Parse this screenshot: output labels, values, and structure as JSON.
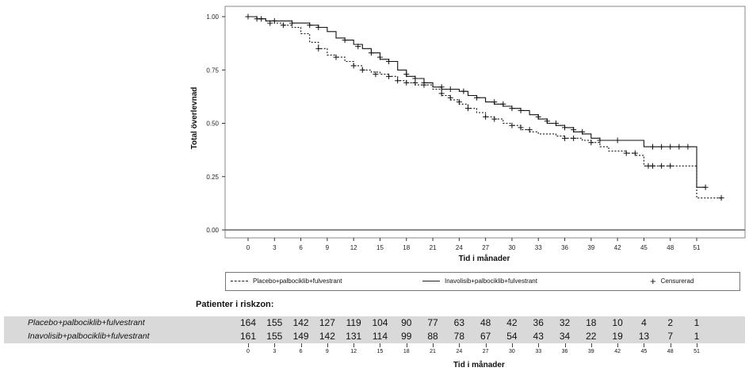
{
  "chart_data": {
    "type": "line",
    "ylabel": "Total överlevnad",
    "xlabel": "Tid i månader",
    "xlim": [
      0,
      54
    ],
    "ylim": [
      0,
      1.0
    ],
    "x_ticks": [
      0,
      3,
      6,
      9,
      12,
      15,
      18,
      21,
      24,
      27,
      30,
      33,
      36,
      39,
      42,
      45,
      48,
      51
    ],
    "y_ticks": [
      "0.00",
      "0.25",
      "0.50",
      "0.75",
      "1.00"
    ],
    "grid": false,
    "legend_position": "bottom",
    "series": [
      {
        "name": "Placebo+palbociklib+fulvestrant",
        "style": "dashed",
        "points": [
          [
            0,
            1.0
          ],
          [
            1,
            0.99
          ],
          [
            2,
            0.98
          ],
          [
            3,
            0.97
          ],
          [
            4,
            0.96
          ],
          [
            5,
            0.95
          ],
          [
            6,
            0.92
          ],
          [
            7,
            0.88
          ],
          [
            8,
            0.85
          ],
          [
            9,
            0.82
          ],
          [
            10,
            0.81
          ],
          [
            11,
            0.79
          ],
          [
            12,
            0.77
          ],
          [
            13,
            0.75
          ],
          [
            14,
            0.74
          ],
          [
            15,
            0.73
          ],
          [
            16,
            0.72
          ],
          [
            17,
            0.7
          ],
          [
            18,
            0.69
          ],
          [
            19,
            0.68
          ],
          [
            20,
            0.68
          ],
          [
            21,
            0.66
          ],
          [
            22,
            0.63
          ],
          [
            23,
            0.61
          ],
          [
            24,
            0.59
          ],
          [
            25,
            0.57
          ],
          [
            26,
            0.55
          ],
          [
            27,
            0.53
          ],
          [
            28,
            0.52
          ],
          [
            29,
            0.5
          ],
          [
            30,
            0.49
          ],
          [
            31,
            0.47
          ],
          [
            32,
            0.46
          ],
          [
            33,
            0.45
          ],
          [
            34,
            0.45
          ],
          [
            35,
            0.44
          ],
          [
            36,
            0.43
          ],
          [
            37,
            0.43
          ],
          [
            38,
            0.42
          ],
          [
            39,
            0.41
          ],
          [
            40,
            0.39
          ],
          [
            41,
            0.37
          ],
          [
            42,
            0.37
          ],
          [
            43,
            0.36
          ],
          [
            44,
            0.35
          ],
          [
            45,
            0.3
          ],
          [
            46,
            0.3
          ],
          [
            47,
            0.3
          ],
          [
            48,
            0.3
          ],
          [
            49,
            0.3
          ],
          [
            50,
            0.3
          ],
          [
            51,
            0.15
          ],
          [
            52,
            0.15
          ],
          [
            53,
            0.15
          ],
          [
            54,
            0.15
          ]
        ],
        "censored": [
          [
            1,
            0.99
          ],
          [
            2.5,
            0.97
          ],
          [
            4,
            0.96
          ],
          [
            8,
            0.85
          ],
          [
            10,
            0.81
          ],
          [
            12,
            0.77
          ],
          [
            13,
            0.75
          ],
          [
            14.5,
            0.73
          ],
          [
            16,
            0.72
          ],
          [
            17,
            0.7
          ],
          [
            18,
            0.69
          ],
          [
            19,
            0.69
          ],
          [
            20,
            0.68
          ],
          [
            22,
            0.64
          ],
          [
            23,
            0.62
          ],
          [
            24,
            0.6
          ],
          [
            25,
            0.57
          ],
          [
            27,
            0.53
          ],
          [
            28,
            0.52
          ],
          [
            30,
            0.49
          ],
          [
            31,
            0.48
          ],
          [
            32,
            0.47
          ],
          [
            36,
            0.43
          ],
          [
            37,
            0.43
          ],
          [
            39,
            0.41
          ],
          [
            43,
            0.36
          ],
          [
            44,
            0.36
          ],
          [
            45.5,
            0.3
          ],
          [
            46,
            0.3
          ],
          [
            47,
            0.3
          ],
          [
            48,
            0.3
          ],
          [
            53.8,
            0.15
          ]
        ]
      },
      {
        "name": "Inavolisib+palbociklib+fulvestrant",
        "style": "solid",
        "points": [
          [
            0,
            1.0
          ],
          [
            1,
            0.99
          ],
          [
            2,
            0.98
          ],
          [
            3,
            0.98
          ],
          [
            4,
            0.98
          ],
          [
            5,
            0.97
          ],
          [
            6,
            0.97
          ],
          [
            7,
            0.96
          ],
          [
            8,
            0.95
          ],
          [
            9,
            0.93
          ],
          [
            10,
            0.9
          ],
          [
            11,
            0.89
          ],
          [
            12,
            0.87
          ],
          [
            13,
            0.85
          ],
          [
            14,
            0.83
          ],
          [
            15,
            0.8
          ],
          [
            16,
            0.79
          ],
          [
            17,
            0.75
          ],
          [
            18,
            0.72
          ],
          [
            19,
            0.71
          ],
          [
            20,
            0.69
          ],
          [
            21,
            0.67
          ],
          [
            22,
            0.66
          ],
          [
            23,
            0.66
          ],
          [
            24,
            0.65
          ],
          [
            25,
            0.63
          ],
          [
            26,
            0.62
          ],
          [
            27,
            0.6
          ],
          [
            28,
            0.59
          ],
          [
            29,
            0.58
          ],
          [
            30,
            0.57
          ],
          [
            31,
            0.56
          ],
          [
            32,
            0.54
          ],
          [
            33,
            0.52
          ],
          [
            34,
            0.5
          ],
          [
            35,
            0.49
          ],
          [
            36,
            0.48
          ],
          [
            37,
            0.46
          ],
          [
            38,
            0.45
          ],
          [
            39,
            0.43
          ],
          [
            40,
            0.42
          ],
          [
            41,
            0.42
          ],
          [
            42,
            0.42
          ],
          [
            43,
            0.42
          ],
          [
            44,
            0.42
          ],
          [
            45,
            0.39
          ],
          [
            46,
            0.39
          ],
          [
            47,
            0.39
          ],
          [
            48,
            0.39
          ],
          [
            49,
            0.39
          ],
          [
            50,
            0.39
          ],
          [
            51,
            0.2
          ],
          [
            52,
            0.2
          ]
        ],
        "censored": [
          [
            0,
            1.0
          ],
          [
            1.5,
            0.99
          ],
          [
            3,
            0.98
          ],
          [
            5,
            0.97
          ],
          [
            7,
            0.96
          ],
          [
            8,
            0.95
          ],
          [
            11,
            0.89
          ],
          [
            12.5,
            0.86
          ],
          [
            14,
            0.83
          ],
          [
            15,
            0.81
          ],
          [
            16,
            0.79
          ],
          [
            18,
            0.73
          ],
          [
            19,
            0.71
          ],
          [
            20,
            0.69
          ],
          [
            22,
            0.67
          ],
          [
            23,
            0.66
          ],
          [
            24.5,
            0.65
          ],
          [
            26,
            0.62
          ],
          [
            28,
            0.6
          ],
          [
            29,
            0.59
          ],
          [
            30,
            0.57
          ],
          [
            31,
            0.56
          ],
          [
            33,
            0.53
          ],
          [
            34,
            0.51
          ],
          [
            35,
            0.5
          ],
          [
            36,
            0.48
          ],
          [
            37,
            0.47
          ],
          [
            38,
            0.46
          ],
          [
            40,
            0.42
          ],
          [
            42,
            0.42
          ],
          [
            46,
            0.39
          ],
          [
            47,
            0.39
          ],
          [
            48,
            0.39
          ],
          [
            49,
            0.39
          ],
          [
            50,
            0.39
          ],
          [
            52,
            0.2
          ]
        ]
      }
    ],
    "legend_entries": [
      "Placebo+palbociklib+fulvestrant",
      "Inavolisib+palbociklib+fulvestrant",
      "Censurerad"
    ]
  },
  "risk_table": {
    "title": "Patienter i riskzon:",
    "xlabel": "Tid i månader",
    "times": [
      0,
      3,
      6,
      9,
      12,
      15,
      18,
      21,
      24,
      27,
      30,
      33,
      36,
      39,
      42,
      45,
      48,
      51
    ],
    "rows": [
      {
        "label": "Placebo+palbociklib+fulvestrant",
        "values": [
          164,
          155,
          142,
          127,
          119,
          104,
          90,
          77,
          63,
          48,
          42,
          36,
          32,
          18,
          10,
          4,
          2,
          1
        ]
      },
      {
        "label": "Inavolisib+palbociklib+fulvestrant",
        "values": [
          161,
          155,
          149,
          142,
          131,
          114,
          99,
          88,
          78,
          67,
          54,
          43,
          34,
          22,
          19,
          13,
          7,
          1
        ]
      }
    ]
  }
}
